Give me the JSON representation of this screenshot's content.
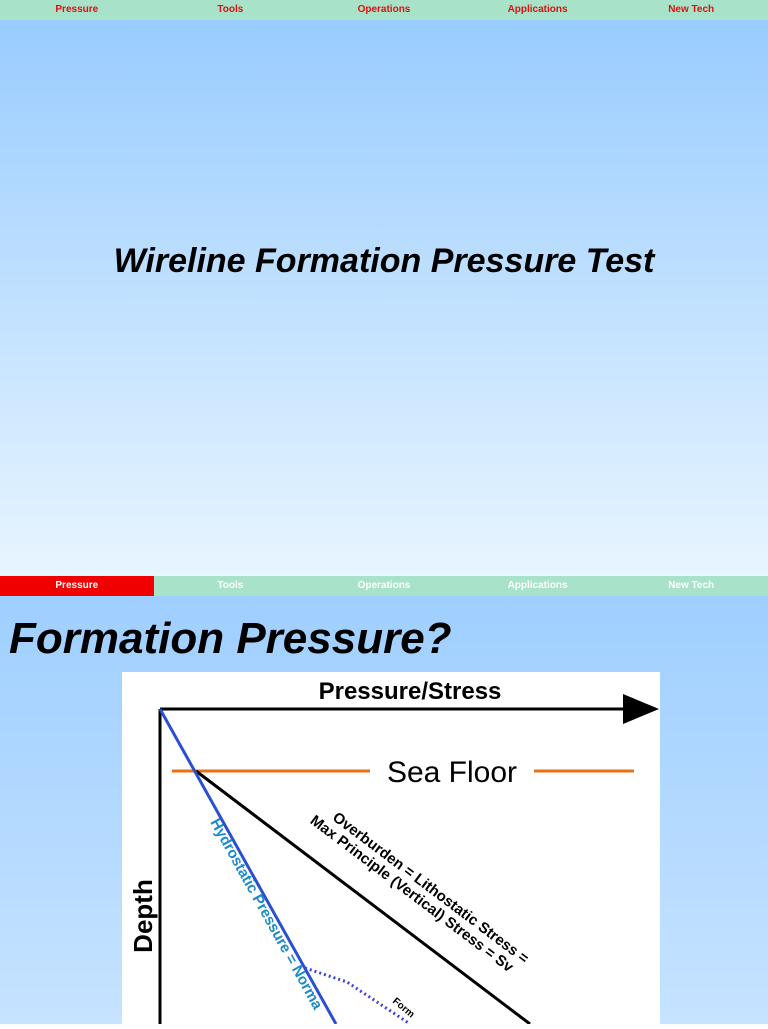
{
  "nav": {
    "items": [
      "Pressure",
      "Tools",
      "Operations",
      "Applications",
      "New Tech"
    ],
    "active_in_second_bar": "Pressure"
  },
  "slide1": {
    "title": "Wireline Formation Pressure Test"
  },
  "slide2": {
    "title": "Formation Pressure?",
    "diagram": {
      "x_axis_label": "Pressure/Stress",
      "y_axis_label": "Depth",
      "sea_floor_label": "Sea Floor",
      "overburden_label_1": "Overburden = Lithostatic Stress =",
      "overburden_label_2": "Max Principle (Vertical) Stress = Sv",
      "hydrostatic_label": "Hydrostatic Pressure = Norma",
      "formation_label": "Form",
      "colors": {
        "sea_floor": "#e8701a",
        "hydrostatic": "#2a4fd0",
        "hydrostatic_label": "#1a8ac8",
        "formation": "#4040e0",
        "overburden": "#000000"
      }
    }
  }
}
